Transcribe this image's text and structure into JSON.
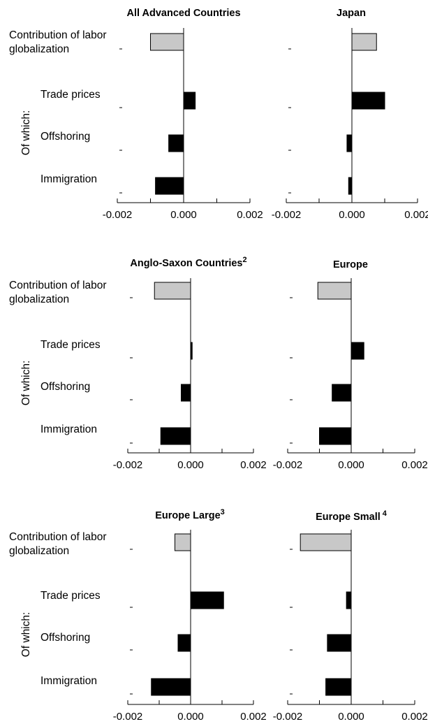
{
  "row_labels": {
    "categories": [
      "Contribution of labor globalization",
      "Trade prices",
      "Offshoring",
      "Immigration"
    ],
    "contribution_line1": "Contribution of labor",
    "contribution_line2": "globalization",
    "trade": "Trade prices",
    "offshoring": "Offshoring",
    "immigration": "Immigration",
    "group_label": "Of which:"
  },
  "colors": {
    "contribution": "#c8c8c8",
    "components": "#000000"
  },
  "chart_data": [
    {
      "type": "bar",
      "orientation": "horizontal",
      "title": "All Advanced Countries",
      "footnote": "",
      "categories": [
        "Contribution of labor globalization",
        "Trade prices",
        "Offshoring",
        "Immigration"
      ],
      "values": [
        -0.001,
        0.00035,
        -0.00045,
        -0.00085
      ],
      "xlim": [
        -0.002,
        0.002
      ],
      "xticks": [
        "-0.002",
        "0.000",
        "0.002"
      ]
    },
    {
      "type": "bar",
      "orientation": "horizontal",
      "title": "Japan",
      "footnote": "",
      "categories": [
        "Contribution of labor globalization",
        "Trade prices",
        "Offshoring",
        "Immigration"
      ],
      "values": [
        0.00075,
        0.001,
        -0.00015,
        -0.0001
      ],
      "xlim": [
        -0.002,
        0.002
      ],
      "xticks": [
        "-0.002",
        "0.000",
        "0.002"
      ]
    },
    {
      "type": "bar",
      "orientation": "horizontal",
      "title": "Anglo-Saxon Countries",
      "footnote": "2",
      "categories": [
        "Contribution of labor globalization",
        "Trade prices",
        "Offshoring",
        "Immigration"
      ],
      "values": [
        -0.00115,
        5e-05,
        -0.0003,
        -0.00095
      ],
      "xlim": [
        -0.002,
        0.002
      ],
      "xticks": [
        "-0.002",
        "0.000",
        "0.002"
      ]
    },
    {
      "type": "bar",
      "orientation": "horizontal",
      "title": "Europe",
      "footnote": "",
      "categories": [
        "Contribution of labor globalization",
        "Trade prices",
        "Offshoring",
        "Immigration"
      ],
      "values": [
        -0.00105,
        0.0004,
        -0.0006,
        -0.001
      ],
      "xlim": [
        -0.002,
        0.002
      ],
      "xticks": [
        "-0.002",
        "0.000",
        "0.002"
      ]
    },
    {
      "type": "bar",
      "orientation": "horizontal",
      "title": "Europe Large",
      "footnote": "3",
      "categories": [
        "Contribution of labor globalization",
        "Trade prices",
        "Offshoring",
        "Immigration"
      ],
      "values": [
        -0.0005,
        0.00105,
        -0.0004,
        -0.00125
      ],
      "xlim": [
        -0.002,
        0.002
      ],
      "xticks": [
        "-0.002",
        "0.000",
        "0.002"
      ]
    },
    {
      "type": "bar",
      "orientation": "horizontal",
      "title": "Europe Small",
      "footnote": "4",
      "categories": [
        "Contribution of labor globalization",
        "Trade prices",
        "Offshoring",
        "Immigration"
      ],
      "values": [
        -0.0016,
        -0.00015,
        -0.00075,
        -0.0008
      ],
      "xlim": [
        -0.002,
        0.002
      ],
      "xticks": [
        "-0.002",
        "0.000",
        "0.002"
      ]
    }
  ]
}
